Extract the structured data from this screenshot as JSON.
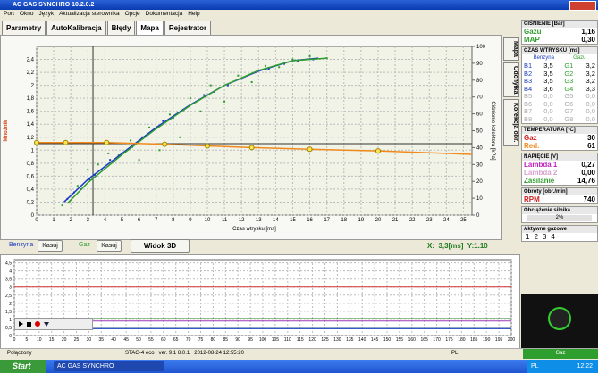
{
  "window": {
    "title": "AC GAS SYNCHRO  10.2.0.2"
  },
  "menu": [
    "Port",
    "Okno",
    "Język",
    "Aktualizacja sterownika",
    "Opcje",
    "Dokumentacja",
    "Help"
  ],
  "tabs": [
    "Parametry",
    "AutoKalibracja",
    "Błędy",
    "Mapa",
    "Rejestrator"
  ],
  "side_tabs": [
    "Mapa",
    "Odchyłka",
    "Korekcja obr."
  ],
  "controls": {
    "petrol_label": "Benzyna",
    "gas_label": "Gaz",
    "clear": "Kasuj",
    "view3d": "Widok 3D",
    "cursor": "X:  3,3[ms]  Y:1.10"
  },
  "panel": {
    "pressure": {
      "title": "CIŚNIENIE [Bar]",
      "rows": [
        [
          "Gazu",
          "1,16"
        ],
        [
          "MAP",
          "0,30"
        ]
      ]
    },
    "injection": {
      "title": "CZAS WTRYSKU [ms]",
      "col_petrol": "Benzyna",
      "col_gas": "Gazu",
      "rows": [
        [
          "B1",
          "3,5",
          "G1",
          "3,2"
        ],
        [
          "B2",
          "3,5",
          "G2",
          "3,2"
        ],
        [
          "B3",
          "3,5",
          "G3",
          "3,2"
        ],
        [
          "B4",
          "3,6",
          "G4",
          "3,3"
        ],
        [
          "B5",
          "0,0",
          "G5",
          "0,0"
        ],
        [
          "B6",
          "0,0",
          "G6",
          "0,0"
        ],
        [
          "B7",
          "0,0",
          "G7",
          "0,0"
        ],
        [
          "B8",
          "0,0",
          "G8",
          "0,0"
        ]
      ]
    },
    "temperature": {
      "title": "TEMPERATURA [°C]",
      "rows": [
        [
          "Gaz",
          "30"
        ],
        [
          "Red.",
          "61"
        ]
      ]
    },
    "voltage": {
      "title": "NAPIĘCIE [V]",
      "rows": [
        [
          "Lambda 1",
          "0,27"
        ],
        [
          "Lambda 2",
          "0,00"
        ],
        [
          "Zasilanie",
          "14,76"
        ]
      ]
    },
    "rpm": {
      "title": "Obroty [obr./min]",
      "rows": [
        [
          "RPM",
          "740"
        ]
      ]
    },
    "load": {
      "title": "Obciążenie silnika",
      "value": "2%"
    },
    "active": {
      "title": "Aktywne gazowe",
      "labels": [
        "1",
        "2",
        "3",
        "4"
      ]
    }
  },
  "status": {
    "connection": "Połączony",
    "ecu": "STAG-4 eco   ver. 9.1 8.0.1   2012-08-24 12:55:20",
    "lang": "PL",
    "fuel": "Gaz"
  },
  "taskbar": {
    "start": "Start",
    "window": "AC GAS SYNCHRO",
    "lang": "PL",
    "clock": "12:22"
  },
  "chart_data": [
    {
      "type": "scatter",
      "x_label": "Czas wtrysku [ms]",
      "y_label": "Mnożnik",
      "y2_label": "Ciśnienie kolektora [kPa]",
      "xlim": [
        0,
        25.5
      ],
      "ylim": [
        0,
        2.6
      ],
      "y2lim": [
        0,
        100
      ],
      "grid": true,
      "xticks": [
        0,
        1,
        2,
        3,
        4,
        5,
        6,
        7,
        8,
        9,
        10,
        11,
        12,
        13,
        14,
        15,
        16,
        17,
        18,
        19,
        20,
        21,
        22,
        23,
        24,
        25
      ],
      "yticks": [
        0,
        {
          "value": 0.2,
          "label": "0,2"
        },
        {
          "value": 0.4,
          "label": "0,4"
        },
        {
          "value": 0.6,
          "label": "0,6"
        },
        {
          "value": 0.8,
          "label": "0,8"
        },
        1,
        {
          "value": 1.2,
          "label": "1,2"
        },
        {
          "value": 1.4,
          "label": "1,4"
        },
        {
          "value": 1.6,
          "label": "1,6"
        },
        {
          "value": 1.8,
          "label": "1,8"
        },
        2,
        {
          "value": 2.2,
          "label": "2,2"
        },
        {
          "value": 2.4,
          "label": "2,4"
        }
      ],
      "y2ticks": [
        0,
        10,
        20,
        30,
        40,
        50,
        60,
        70,
        80,
        90,
        100
      ],
      "cursor_x": 3.3,
      "cursor_y": 1.1,
      "series": [
        {
          "color": "#1c38c8",
          "style": "points",
          "x": [
            1.8,
            2.2,
            2.6,
            3.1,
            3.4,
            3.8,
            4.3,
            5,
            5.6,
            6.2,
            6.8,
            7.4,
            8,
            8.6,
            9.2,
            9.8,
            10.4,
            11.2,
            12,
            12.8,
            13.6,
            14.5,
            15.3,
            16.2
          ],
          "values": [
            0.25,
            0.35,
            0.4,
            0.55,
            0.62,
            0.7,
            0.85,
            0.95,
            1.05,
            1.2,
            1.3,
            1.45,
            1.5,
            1.62,
            1.72,
            1.85,
            1.9,
            2.0,
            2.1,
            2.2,
            2.25,
            2.33,
            2.38,
            2.4
          ]
        },
        {
          "color": "#2e9e2e",
          "style": "points",
          "x": [
            1.5,
            2.4,
            3,
            3.6,
            4.2,
            4.8,
            5.5,
            6,
            6.6,
            7.2,
            7.8,
            8.4,
            9,
            9.6,
            10.2,
            11,
            11.8,
            12.6,
            13.4,
            14.2,
            15,
            16,
            17
          ],
          "values": [
            0.15,
            0.45,
            0.7,
            0.78,
            0.95,
            0.92,
            1.15,
            0.85,
            1.35,
            1.0,
            1.55,
            1.2,
            1.8,
            1.6,
            2.0,
            1.75,
            2.15,
            2.05,
            2.3,
            2.28,
            2.4,
            2.45,
            2.42
          ]
        },
        {
          "color": "#1c38c8",
          "style": "line",
          "x": [
            1.6,
            3,
            5,
            7,
            9,
            11,
            13,
            15,
            16.5
          ],
          "values": [
            0.2,
            0.55,
            0.95,
            1.35,
            1.7,
            2.0,
            2.22,
            2.38,
            2.42
          ]
        },
        {
          "color": "#2e9e2e",
          "style": "line",
          "x": [
            1.8,
            3,
            5,
            7,
            9,
            11,
            13,
            15,
            17
          ],
          "values": [
            0.18,
            0.5,
            0.93,
            1.33,
            1.69,
            2.0,
            2.23,
            2.38,
            2.42
          ]
        },
        {
          "color": "#f08a1c",
          "style": "line",
          "axis": "y2",
          "x": [
            0,
            1.7,
            4.1,
            7.5,
            10,
            12.6,
            16,
            20,
            25.5
          ],
          "values": [
            43,
            43,
            43,
            42,
            41,
            40,
            39,
            38,
            36
          ]
        }
      ]
    },
    {
      "type": "line",
      "xlim": [
        0,
        200
      ],
      "ylim": [
        0,
        4.7
      ],
      "grid": true,
      "xticks": [
        0,
        5,
        10,
        15,
        20,
        25,
        30,
        35,
        40,
        45,
        50,
        55,
        60,
        65,
        70,
        75,
        80,
        85,
        90,
        95,
        100,
        105,
        110,
        115,
        120,
        125,
        130,
        135,
        140,
        145,
        150,
        155,
        160,
        165,
        170,
        175,
        180,
        185,
        190,
        195,
        200
      ],
      "yticks": [
        0,
        {
          "value": 0.5,
          "label": "0,5"
        },
        1,
        {
          "value": 1.5,
          "label": "1,5"
        },
        2,
        {
          "value": 2.5,
          "label": "2,5"
        },
        3,
        {
          "value": 3.5,
          "label": "3,5"
        },
        4,
        {
          "value": 4.5,
          "label": "4,5"
        }
      ],
      "series": [
        {
          "color": "#d03030",
          "x": [
            0,
            200
          ],
          "values": [
            3,
            3
          ]
        },
        {
          "color": "#1f7a1f",
          "x": [
            0,
            200
          ],
          "values": [
            1.05,
            1.05
          ]
        },
        {
          "color": "#9a3cb8",
          "x": [
            0,
            200
          ],
          "values": [
            0.9,
            0.9
          ]
        },
        {
          "color": "#6080a0",
          "x": [
            0,
            200
          ],
          "values": [
            0.5,
            0.5
          ]
        },
        {
          "color": "#2040c0",
          "x": [
            0,
            200
          ],
          "values": [
            0.42,
            0.42
          ]
        }
      ]
    }
  ]
}
